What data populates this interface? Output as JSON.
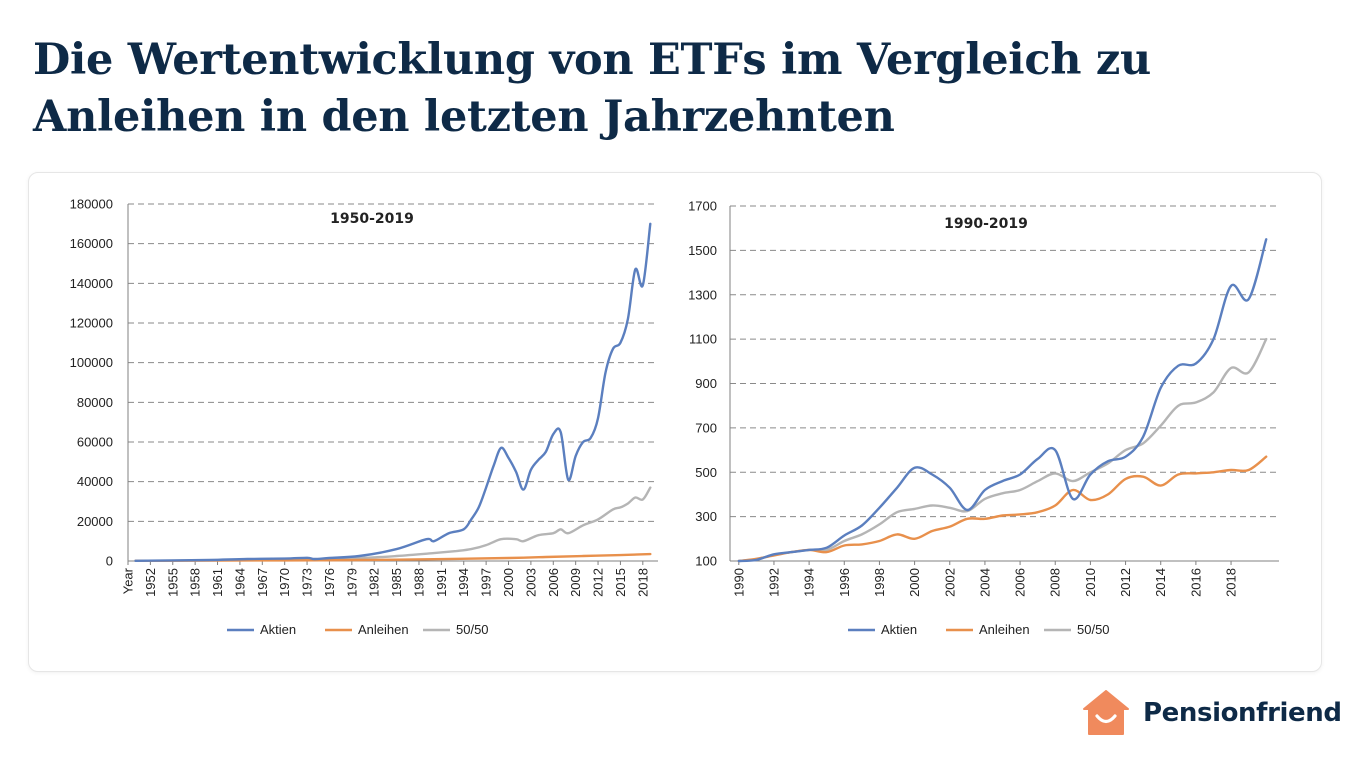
{
  "page": {
    "title": "Die Wertentwicklung von ETFs im Vergleich zu Anleihen in den letzten Jahrzehnten"
  },
  "brand": {
    "name": "Pensionfriend",
    "logo_icon": "house-smile-icon",
    "color": "#f08a5d"
  },
  "colors": {
    "aktien": "#5b7fbf",
    "anleihen": "#e8904c",
    "mix": "#b5b5b5",
    "grid": "#8a8a8a",
    "axis": "#808080"
  },
  "chart_data": [
    {
      "type": "line",
      "title": "1950-2019",
      "xlabel": "",
      "ylabel": "",
      "ylim": [
        0,
        180000
      ],
      "yticks": [
        0,
        20000,
        40000,
        60000,
        80000,
        100000,
        120000,
        140000,
        160000,
        180000
      ],
      "ytick_labels": [
        "0",
        "20000",
        "40000",
        "60000",
        "80000",
        "100000",
        "120000",
        "140000",
        "160000",
        "180000"
      ],
      "xlim": [
        1949,
        2019.5
      ],
      "xtick_labels": [
        "Year",
        "1952",
        "1955",
        "1958",
        "1961",
        "1964",
        "1967",
        "1970",
        "1973",
        "1976",
        "1979",
        "1982",
        "1985",
        "1988",
        "1991",
        "1994",
        "1997",
        "2000",
        "2003",
        "2006",
        "2009",
        "2012",
        "2015",
        "2018"
      ],
      "xtick_values": [
        1949,
        1952,
        1955,
        1958,
        1961,
        1964,
        1967,
        1970,
        1973,
        1976,
        1979,
        1982,
        1985,
        1988,
        1991,
        1994,
        1997,
        2000,
        2003,
        2006,
        2009,
        2012,
        2015,
        2018
      ],
      "grid": true,
      "legend_position": "bottom",
      "series": [
        {
          "name": "Aktien",
          "x": [
            1950,
            1955,
            1960,
            1965,
            1970,
            1973,
            1974,
            1976,
            1980,
            1985,
            1989,
            1990,
            1992,
            1994,
            1995,
            1996,
            1997,
            1998,
            1999,
            2000,
            2001,
            2002,
            2003,
            2004,
            2005,
            2006,
            2007,
            2008,
            2009,
            2010,
            2011,
            2012,
            2013,
            2014,
            2015,
            2016,
            2017,
            2018,
            2019
          ],
          "values": [
            100,
            300,
            500,
            1000,
            1200,
            1600,
            1000,
            1500,
            2500,
            6000,
            11000,
            10000,
            14000,
            16000,
            21000,
            27000,
            37000,
            48000,
            57000,
            52000,
            45000,
            36000,
            46000,
            51000,
            55000,
            64000,
            65000,
            41000,
            53000,
            60000,
            62000,
            72000,
            95000,
            107000,
            110000,
            122000,
            147000,
            139000,
            170000
          ]
        },
        {
          "name": "Anleihen",
          "x": [
            1950,
            1960,
            1970,
            1980,
            1990,
            2000,
            2005,
            2010,
            2015,
            2019
          ],
          "values": [
            100,
            200,
            300,
            500,
            900,
            1500,
            2000,
            2500,
            3000,
            3500
          ]
        },
        {
          "name": "50/50",
          "x": [
            1950,
            1960,
            1970,
            1980,
            1985,
            1990,
            1993,
            1995,
            1997,
            1999,
            2001,
            2002,
            2004,
            2006,
            2007,
            2008,
            2010,
            2012,
            2014,
            2015,
            2016,
            2017,
            2018,
            2019
          ],
          "values": [
            100,
            300,
            600,
            1500,
            2500,
            4000,
            5000,
            6000,
            8000,
            11000,
            11000,
            10000,
            13000,
            14000,
            16000,
            14000,
            18000,
            21000,
            26000,
            27000,
            29000,
            32000,
            31000,
            37000
          ]
        }
      ]
    },
    {
      "type": "line",
      "title": "1990-2019",
      "xlabel": "",
      "ylabel": "",
      "ylim": [
        100,
        1700
      ],
      "yticks": [
        100,
        300,
        500,
        700,
        900,
        1100,
        1300,
        1500,
        1700
      ],
      "ytick_labels": [
        "100",
        "300",
        "500",
        "700",
        "900",
        "1100",
        "1300",
        "1500",
        "1700"
      ],
      "xlim": [
        1989.5,
        2020.5
      ],
      "xtick_labels": [
        "1990",
        "1992",
        "1994",
        "1996",
        "1998",
        "2000",
        "2002",
        "2004",
        "2006",
        "2008",
        "2010",
        "2012",
        "2014",
        "2016",
        "2018"
      ],
      "xtick_values": [
        1990,
        1992,
        1994,
        1996,
        1998,
        2000,
        2002,
        2004,
        2006,
        2008,
        2010,
        2012,
        2014,
        2016,
        2018
      ],
      "grid": true,
      "legend_position": "bottom",
      "series": [
        {
          "name": "Aktien",
          "x": [
            1990,
            1991,
            1992,
            1993,
            1994,
            1995,
            1996,
            1997,
            1998,
            1999,
            2000,
            2001,
            2002,
            2003,
            2004,
            2005,
            2006,
            2007,
            2008,
            2009,
            2010,
            2011,
            2012,
            2013,
            2014,
            2015,
            2016,
            2017,
            2018,
            2019,
            2020
          ],
          "values": [
            100,
            105,
            130,
            140,
            150,
            160,
            215,
            260,
            340,
            430,
            520,
            490,
            430,
            330,
            420,
            460,
            490,
            560,
            600,
            380,
            490,
            550,
            570,
            660,
            880,
            980,
            990,
            1100,
            1340,
            1280,
            1550
          ]
        },
        {
          "name": "Anleihen",
          "x": [
            1990,
            1991,
            1992,
            1993,
            1994,
            1995,
            1996,
            1997,
            1998,
            1999,
            2000,
            2001,
            2002,
            2003,
            2004,
            2005,
            2006,
            2007,
            2008,
            2009,
            2010,
            2011,
            2012,
            2013,
            2014,
            2015,
            2016,
            2017,
            2018,
            2019,
            2020
          ],
          "values": [
            100,
            110,
            125,
            140,
            150,
            140,
            170,
            175,
            190,
            220,
            200,
            235,
            255,
            290,
            290,
            305,
            310,
            320,
            350,
            420,
            375,
            400,
            470,
            480,
            440,
            490,
            495,
            500,
            510,
            510,
            570
          ]
        },
        {
          "name": "50/50",
          "x": [
            1990,
            1991,
            1992,
            1993,
            1994,
            1995,
            1996,
            1997,
            1998,
            1999,
            2000,
            2001,
            2002,
            2003,
            2004,
            2005,
            2006,
            2007,
            2008,
            2009,
            2010,
            2011,
            2012,
            2013,
            2014,
            2015,
            2016,
            2017,
            2018,
            2019,
            2020
          ],
          "values": [
            100,
            108,
            128,
            140,
            150,
            150,
            190,
            220,
            265,
            320,
            335,
            350,
            340,
            325,
            380,
            405,
            420,
            460,
            495,
            460,
            500,
            540,
            600,
            630,
            710,
            800,
            815,
            860,
            970,
            950,
            1100
          ]
        }
      ]
    }
  ]
}
